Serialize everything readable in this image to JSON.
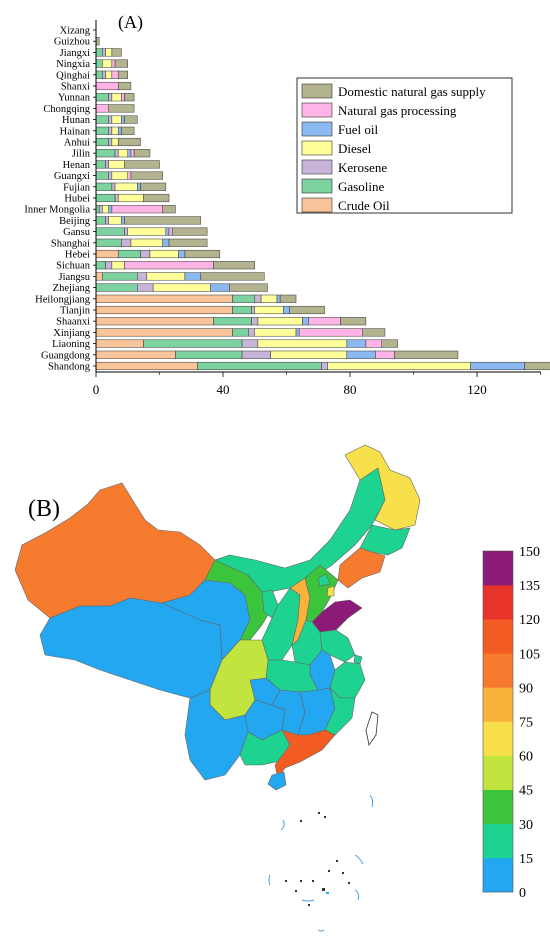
{
  "panel_a_label": "(A)",
  "panel_b_label": "(B)",
  "chart_data": [
    {
      "type": "bar",
      "orientation": "horizontal",
      "stacked": true,
      "categories": [
        "Shandong",
        "Guangdong",
        "Liaoning",
        "Xinjiang",
        "Shaanxi",
        "Tianjin",
        "Heilongjiang",
        "Zhejiang",
        "Jiangsu",
        "Sichuan",
        "Hebei",
        "Shanghai",
        "Gansu",
        "Beijing",
        "Inner Mongolia",
        "Hubei",
        "Fujian",
        "Guangxi",
        "Henan",
        "Jilin",
        "Anhui",
        "Hainan",
        "Hunan",
        "Chongqing",
        "Yunnan",
        "Shanxi",
        "Qinghai",
        "Ningxia",
        "Jiangxi",
        "Guizhou",
        "Xizang"
      ],
      "series": [
        {
          "name": "Crude Oil",
          "color": "#f9c49a",
          "values": [
            32,
            25,
            15,
            43,
            37,
            43,
            43,
            0,
            2,
            0,
            7,
            0,
            0,
            0,
            0,
            0,
            0,
            0,
            0,
            0,
            0,
            0,
            0,
            0,
            0,
            0,
            0,
            0,
            0,
            0,
            0
          ]
        },
        {
          "name": "Gasoline",
          "color": "#7dd3a0",
          "values": [
            39,
            21,
            31,
            5,
            12,
            6,
            7,
            13,
            11,
            3,
            7,
            8,
            9,
            3,
            1,
            6,
            5,
            4,
            3,
            6,
            4,
            4,
            4,
            0,
            4,
            0,
            2,
            2,
            2,
            0,
            0
          ]
        },
        {
          "name": "Kerosene",
          "color": "#c8b4d8",
          "values": [
            2,
            9,
            5,
            2,
            2,
            1,
            2,
            5,
            3,
            2,
            3,
            3,
            1,
            1,
            1,
            1,
            1,
            1,
            1,
            1,
            1,
            1,
            1,
            0,
            1,
            0,
            1,
            0,
            1,
            0,
            0
          ]
        },
        {
          "name": "Diesel",
          "color": "#ffff99",
          "values": [
            45,
            24,
            28,
            13,
            14,
            9,
            5,
            18,
            12,
            4,
            9,
            10,
            12,
            4,
            2,
            8,
            7,
            5,
            5,
            3,
            2,
            2,
            3,
            0,
            3,
            0,
            2,
            3,
            2,
            0,
            0
          ]
        },
        {
          "name": "Fuel oil",
          "color": "#8bb8f0",
          "values": [
            17,
            9,
            6,
            1,
            2,
            2,
            1,
            6,
            5,
            0,
            2,
            2,
            1,
            1,
            1,
            0,
            1,
            0,
            0,
            1,
            0,
            1,
            1,
            0,
            0,
            0,
            0,
            0,
            0,
            0,
            0
          ]
        },
        {
          "name": "Natural gas processing",
          "color": "#ffb3e6",
          "values": [
            0,
            6,
            5,
            20,
            10,
            0,
            0,
            0,
            0,
            28,
            0,
            0,
            1,
            0,
            16,
            0,
            0,
            1,
            0,
            1,
            0,
            0,
            0,
            4,
            1,
            7,
            2,
            1,
            0,
            0,
            0
          ]
        },
        {
          "name": "Domestic natural gas supply",
          "color": "#b3b38f",
          "values": [
            15,
            20,
            5,
            7,
            8,
            11,
            5,
            12,
            20,
            13,
            11,
            12,
            11,
            24,
            4,
            8,
            8,
            10,
            11,
            5,
            7,
            4,
            4,
            8,
            3,
            4,
            3,
            4,
            3,
            1,
            0
          ]
        }
      ],
      "xticks": [
        "0",
        "40",
        "80",
        "120"
      ],
      "xlim": [
        0,
        148
      ],
      "legend_position": "top-right"
    },
    {
      "type": "choropleth",
      "legend_ticks": [
        "150",
        "135",
        "120",
        "105",
        "90",
        "75",
        "60",
        "45",
        "30",
        "15",
        "0"
      ],
      "color_scale": [
        "#22a7f0",
        "#1ed38f",
        "#3cc43c",
        "#c2e43f",
        "#f7e04a",
        "#f9b23a",
        "#f77b2f",
        "#f25c22",
        "#e7332a",
        "#8b1a78"
      ]
    }
  ]
}
